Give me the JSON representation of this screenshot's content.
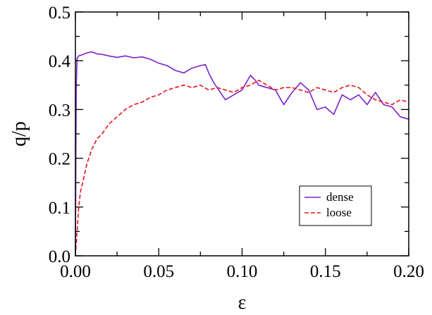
{
  "chart_data": {
    "type": "line",
    "title": "",
    "xlabel": "ε",
    "ylabel": "q/p",
    "xlim": [
      0.0,
      0.2
    ],
    "ylim": [
      0.0,
      0.5
    ],
    "x_ticks": [
      0.0,
      0.05,
      0.1,
      0.15,
      0.2
    ],
    "x_tick_labels": [
      "0.00",
      "0.05",
      "0.10",
      "0.15",
      "0.20"
    ],
    "y_ticks": [
      0.0,
      0.1,
      0.2,
      0.3,
      0.4,
      0.5
    ],
    "y_tick_labels": [
      "0.0",
      "0.1",
      "0.2",
      "0.3",
      "0.4",
      "0.5"
    ],
    "grid": false,
    "legend_position": "lower-right",
    "series": [
      {
        "name": "dense",
        "color": "#7a22cc",
        "dash": "solid",
        "x": [
          0.0,
          0.0005,
          0.001,
          0.002,
          0.004,
          0.006,
          0.008,
          0.01,
          0.013,
          0.016,
          0.02,
          0.025,
          0.03,
          0.035,
          0.04,
          0.045,
          0.05,
          0.055,
          0.06,
          0.065,
          0.07,
          0.075,
          0.078,
          0.08,
          0.083,
          0.086,
          0.09,
          0.095,
          0.1,
          0.105,
          0.108,
          0.11,
          0.115,
          0.12,
          0.125,
          0.13,
          0.135,
          0.14,
          0.145,
          0.15,
          0.155,
          0.16,
          0.165,
          0.17,
          0.175,
          0.18,
          0.185,
          0.19,
          0.195,
          0.2
        ],
        "y": [
          0.0,
          0.35,
          0.405,
          0.41,
          0.412,
          0.415,
          0.417,
          0.418,
          0.414,
          0.413,
          0.41,
          0.407,
          0.41,
          0.406,
          0.408,
          0.403,
          0.395,
          0.39,
          0.38,
          0.375,
          0.385,
          0.39,
          0.392,
          0.375,
          0.355,
          0.34,
          0.32,
          0.33,
          0.34,
          0.37,
          0.36,
          0.35,
          0.345,
          0.34,
          0.31,
          0.335,
          0.355,
          0.34,
          0.3,
          0.305,
          0.29,
          0.33,
          0.32,
          0.33,
          0.31,
          0.335,
          0.31,
          0.305,
          0.285,
          0.28
        ]
      },
      {
        "name": "loose",
        "color": "#e8141e",
        "dash": "dashed",
        "x": [
          0.0,
          0.001,
          0.002,
          0.003,
          0.005,
          0.007,
          0.01,
          0.013,
          0.016,
          0.02,
          0.025,
          0.03,
          0.035,
          0.04,
          0.045,
          0.05,
          0.055,
          0.06,
          0.065,
          0.07,
          0.075,
          0.08,
          0.085,
          0.09,
          0.095,
          0.1,
          0.105,
          0.11,
          0.115,
          0.12,
          0.125,
          0.13,
          0.135,
          0.14,
          0.145,
          0.15,
          0.155,
          0.16,
          0.165,
          0.17,
          0.175,
          0.18,
          0.185,
          0.19,
          0.195,
          0.2
        ],
        "y": [
          0.0,
          0.05,
          0.1,
          0.13,
          0.16,
          0.19,
          0.22,
          0.24,
          0.25,
          0.27,
          0.285,
          0.3,
          0.31,
          0.315,
          0.325,
          0.33,
          0.34,
          0.345,
          0.35,
          0.345,
          0.35,
          0.34,
          0.345,
          0.34,
          0.335,
          0.345,
          0.35,
          0.36,
          0.35,
          0.34,
          0.345,
          0.345,
          0.34,
          0.335,
          0.345,
          0.34,
          0.335,
          0.345,
          0.35,
          0.345,
          0.33,
          0.32,
          0.315,
          0.31,
          0.32,
          0.315
        ]
      }
    ]
  }
}
